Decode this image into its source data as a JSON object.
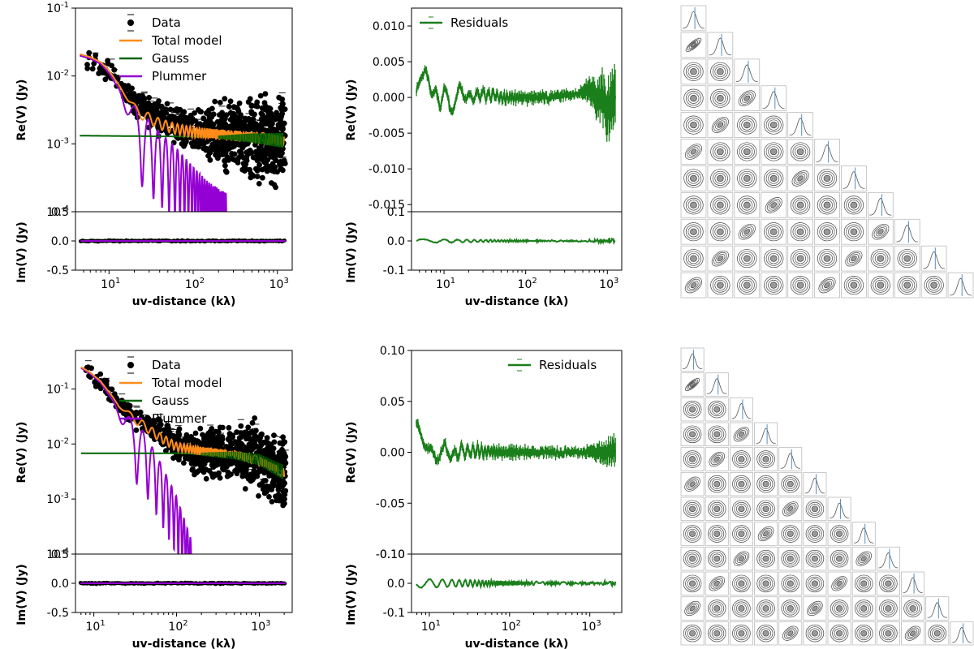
{
  "colors": {
    "data": "#000000",
    "total_model": "#ff8c1a",
    "gauss": "#006400",
    "plummer": "#9400d3",
    "residuals": "#1a7f1a",
    "corner": "#444444",
    "corner_line": "#4682b4"
  },
  "legend_labels": {
    "data": "Data",
    "total_model": "Total model",
    "gauss": "Gauss",
    "plummer": "Plummer",
    "residuals": "Residuals"
  },
  "axis_labels": {
    "x": "uv-distance (kλ)",
    "re": "Re(V) (Jy)",
    "im": "Im(V) (Jy)"
  },
  "chart_data": [
    {
      "id": "top-model",
      "type": "scatter",
      "xscale": "log",
      "yscale": "log",
      "xlim": [
        4,
        1500
      ],
      "ylim": [
        0.0001,
        0.1
      ],
      "xticks": [
        "10^1",
        "10^2",
        "10^3"
      ],
      "yticks": [
        "10^-1",
        "10^-2",
        "10^-3",
        "10^-4"
      ],
      "legend_loc": "upper-right",
      "series": [
        {
          "name": "Total model",
          "x": [
            4.5,
            6,
            8,
            10,
            13,
            17,
            22,
            30,
            40,
            60,
            100,
            200,
            400,
            800,
            1200
          ],
          "y": [
            0.021,
            0.019,
            0.016,
            0.012,
            0.0075,
            0.0045,
            0.003,
            0.0024,
            0.002,
            0.0017,
            0.0015,
            0.0014,
            0.0013,
            0.0012,
            0.0011
          ]
        },
        {
          "name": "Gauss",
          "x": [
            4.5,
            100,
            500,
            1200
          ],
          "y": [
            0.00132,
            0.00128,
            0.00122,
            0.00112
          ]
        },
        {
          "name": "Plummer",
          "x": [
            4.5,
            6,
            8,
            10,
            13,
            17,
            22,
            30,
            40,
            60,
            100,
            150,
            250
          ],
          "y": [
            0.02,
            0.018,
            0.015,
            0.011,
            0.0065,
            0.0035,
            0.0018,
            0.0012,
            0.0008,
            0.0005,
            0.00025,
            0.00015,
            0.0001
          ]
        }
      ],
      "data_envelope": {
        "x": [
          4.5,
          10,
          20,
          50,
          100,
          300,
          600,
          1200
        ],
        "y": [
          0.02,
          0.012,
          0.004,
          0.002,
          0.0015,
          0.0013,
          0.0012,
          0.0011
        ]
      },
      "im_panel": {
        "ylim": [
          -0.5,
          0.5
        ],
        "yticks": [
          "0.5",
          "0.0",
          "-0.5"
        ]
      }
    },
    {
      "id": "top-residuals",
      "type": "line",
      "xscale": "log",
      "xlim": [
        4,
        1500
      ],
      "ylim": [
        -0.016,
        0.0125
      ],
      "xticks": [
        "10^1",
        "10^2",
        "10^3"
      ],
      "yticks": [
        "0.010",
        "0.005",
        "0.000",
        "-0.005",
        "-0.010",
        "-0.015"
      ],
      "legend_loc": "upper-left",
      "series": [
        {
          "name": "Residuals",
          "x": [
            4.5,
            5,
            6,
            7,
            8,
            9,
            10,
            12,
            15,
            20,
            30,
            50,
            100,
            200,
            400,
            600,
            800,
            1000,
            1200
          ],
          "y": [
            0.001,
            0.002,
            0.003,
            0.0,
            0.002,
            -0.001,
            0.001,
            -0.002,
            0.001,
            0.0,
            0.0005,
            0.0,
            0.0,
            0.0,
            0.0005,
            0.001,
            0.0,
            -0.002,
            0.0
          ]
        }
      ],
      "im_panel": {
        "ylim": [
          -0.1,
          0.1
        ],
        "yticks": [
          "0.1",
          "0.0",
          "-0.1"
        ]
      }
    },
    {
      "id": "bottom-model",
      "type": "scatter",
      "xscale": "log",
      "yscale": "log",
      "xlim": [
        6,
        2500
      ],
      "ylim": [
        0.0001,
        0.5
      ],
      "xticks": [
        "10^1",
        "10^2",
        "10^3"
      ],
      "yticks": [
        "10^-1",
        "10^-2",
        "10^-3",
        "10^-4"
      ],
      "legend_loc": "upper-right",
      "series": [
        {
          "name": "Total model",
          "x": [
            7,
            9,
            12,
            16,
            20,
            30,
            40,
            60,
            100,
            200,
            500,
            1000,
            2000
          ],
          "y": [
            0.25,
            0.2,
            0.14,
            0.08,
            0.05,
            0.03,
            0.022,
            0.014,
            0.009,
            0.0075,
            0.0066,
            0.005,
            0.003
          ]
        },
        {
          "name": "Gauss",
          "x": [
            7,
            100,
            500,
            1000,
            2000
          ],
          "y": [
            0.0068,
            0.0068,
            0.0062,
            0.0052,
            0.003
          ]
        },
        {
          "name": "Plummer",
          "x": [
            7,
            9,
            12,
            16,
            20,
            30,
            40,
            60,
            100,
            150
          ],
          "y": [
            0.24,
            0.19,
            0.13,
            0.07,
            0.04,
            0.015,
            0.009,
            0.003,
            0.0006,
            0.0001
          ]
        }
      ],
      "data_envelope": {
        "x": [
          7,
          12,
          20,
          40,
          100,
          300,
          800,
          2000
        ],
        "y": [
          0.25,
          0.14,
          0.05,
          0.025,
          0.009,
          0.0068,
          0.006,
          0.003
        ]
      },
      "im_panel": {
        "ylim": [
          -0.5,
          0.5
        ],
        "yticks": [
          "0.5",
          "0.0",
          "-0.5"
        ]
      }
    },
    {
      "id": "bottom-residuals",
      "type": "line",
      "xscale": "log",
      "xlim": [
        6,
        2500
      ],
      "ylim": [
        -0.1,
        0.1
      ],
      "xticks": [
        "10^1",
        "10^2",
        "10^3"
      ],
      "yticks": [
        "0.10",
        "0.05",
        "0.00",
        "-0.05",
        "-0.10"
      ],
      "legend_loc": "upper-right",
      "series": [
        {
          "name": "Residuals",
          "x": [
            7,
            8,
            9,
            10,
            12,
            14,
            17,
            20,
            25,
            30,
            40,
            60,
            100,
            200,
            500,
            1000,
            2000
          ],
          "y": [
            0.028,
            0.02,
            0.01,
            0.0,
            -0.008,
            0.005,
            0.0,
            -0.004,
            0.003,
            0.0,
            0.002,
            0.0,
            0.0,
            0.0,
            0.0,
            0.0,
            0.0
          ]
        }
      ],
      "im_panel": {
        "ylim": [
          -0.1,
          0.1
        ],
        "yticks": [
          "0.10",
          "0.0",
          "-0.1"
        ]
      }
    }
  ],
  "corner_plots": [
    {
      "id": "top-corner",
      "n": 11
    },
    {
      "id": "bottom-corner",
      "n": 12
    }
  ]
}
